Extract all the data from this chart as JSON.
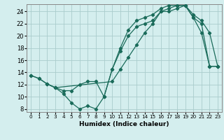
{
  "xlabel": "Humidex (Indice chaleur)",
  "bg_color": "#d4eeee",
  "grid_color": "#aacccc",
  "line_color": "#1a6b5a",
  "xlim": [
    -0.5,
    23.5
  ],
  "ylim": [
    7.5,
    25.2
  ],
  "xticks": [
    0,
    1,
    2,
    3,
    4,
    5,
    6,
    7,
    8,
    9,
    10,
    11,
    12,
    13,
    14,
    15,
    16,
    17,
    18,
    19,
    20,
    21,
    22,
    23
  ],
  "yticks": [
    8,
    10,
    12,
    14,
    16,
    18,
    20,
    22,
    24
  ],
  "line1_x": [
    0,
    1,
    2,
    3,
    4,
    5,
    6,
    7,
    8,
    9,
    10,
    11,
    12,
    13,
    14,
    15,
    16,
    17,
    18,
    19,
    20,
    21,
    22,
    23
  ],
  "line1_y": [
    13.5,
    13.0,
    12.1,
    11.5,
    10.5,
    9.0,
    8.0,
    8.5,
    8.0,
    10.0,
    14.5,
    17.5,
    20.0,
    21.5,
    22.0,
    22.5,
    24.0,
    24.5,
    25.0,
    25.0,
    23.0,
    20.5,
    15.0,
    15.0
  ],
  "line2_x": [
    0,
    1,
    2,
    3,
    10,
    11,
    12,
    13,
    14,
    15,
    16,
    17,
    18,
    19,
    20,
    21,
    22,
    23
  ],
  "line2_y": [
    13.5,
    13.0,
    12.1,
    11.5,
    12.5,
    14.5,
    16.5,
    18.5,
    20.5,
    22.0,
    24.0,
    24.0,
    24.5,
    25.0,
    23.0,
    22.0,
    15.0,
    15.0
  ],
  "line3_x": [
    2,
    3,
    4,
    5,
    6,
    7,
    8,
    9,
    10,
    11,
    12,
    13,
    14,
    15,
    16,
    17,
    18,
    19,
    20,
    21,
    22,
    23
  ],
  "line3_y": [
    12.1,
    11.5,
    11.0,
    11.0,
    12.0,
    12.5,
    12.5,
    10.0,
    14.5,
    18.0,
    21.0,
    22.5,
    23.0,
    23.5,
    24.5,
    25.0,
    25.0,
    25.0,
    23.5,
    22.5,
    20.5,
    15.0
  ]
}
